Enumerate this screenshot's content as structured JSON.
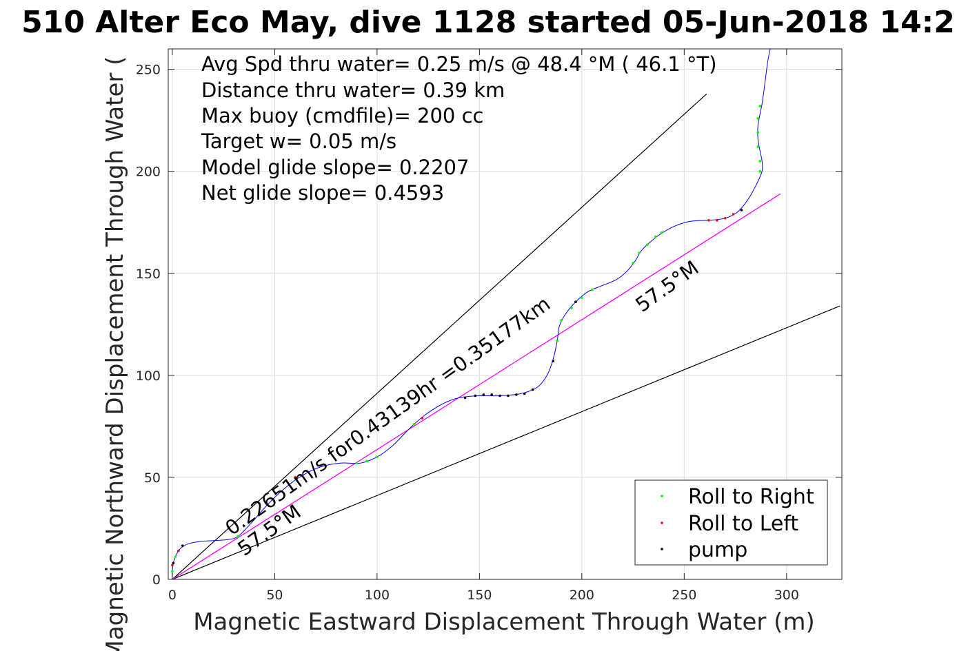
{
  "title": "510 Alter Eco May, dive 1128 started 05-Jun-2018 14:2",
  "xlabel": "Magnetic Eastward Displacement Through Water (m)",
  "ylabel": "Magnetic Northward Displacement Through Water (",
  "info_lines": [
    "Avg Spd thru water=  0.25 m/s @  48.4 °M ( 46.1 °T)",
    "Distance thru water=  0.39 km",
    "Max buoy (cmdfile)= 200 cc",
    "Target w= 0.05 m/s",
    "Model glide slope= 0.2207",
    "Net glide slope= 0.4593"
  ],
  "annotations": {
    "speed_text": "0.22651m/s for0.43139hr =0.35177km",
    "heading_upper": "57.5°M",
    "heading_lower": "57.5°M"
  },
  "legend": [
    {
      "label": "Roll to Right",
      "color": "#00ff00"
    },
    {
      "label": "Roll to Left",
      "color": "#ff0000"
    },
    {
      "label": "pump",
      "color": "#000000"
    }
  ],
  "colors": {
    "track": "#0000ff",
    "net_line": "#ff00ff",
    "envelope": "#000000"
  },
  "chart_data": {
    "type": "line",
    "title": "510 Alter Eco May, dive 1128 started 05-Jun-2018 14:2",
    "xlabel": "Magnetic Eastward Displacement Through Water (m)",
    "ylabel": "Magnetic Northward Displacement Through Water (",
    "xlim": [
      -2,
      327
    ],
    "ylim": [
      0,
      260
    ],
    "xticks": [
      0,
      50,
      100,
      150,
      200,
      250,
      300
    ],
    "yticks": [
      0,
      50,
      100,
      150,
      200,
      250
    ],
    "grid": true,
    "legend_position": "bottom-right",
    "track": [
      [
        0,
        0
      ],
      [
        0,
        4
      ],
      [
        0.5,
        8
      ],
      [
        1.5,
        11
      ],
      [
        3,
        14
      ],
      [
        5,
        16
      ],
      [
        8,
        17.5
      ],
      [
        13,
        18.5
      ],
      [
        20,
        19
      ],
      [
        27,
        19.5
      ],
      [
        32,
        21
      ],
      [
        38,
        27
      ],
      [
        45,
        35
      ],
      [
        53,
        43
      ],
      [
        62,
        50
      ],
      [
        72,
        55
      ],
      [
        82,
        57
      ],
      [
        92,
        57
      ],
      [
        100,
        60
      ],
      [
        107,
        65
      ],
      [
        113,
        71
      ],
      [
        118,
        76
      ],
      [
        124,
        81
      ],
      [
        132,
        86
      ],
      [
        140,
        89
      ],
      [
        150,
        90
      ],
      [
        160,
        90
      ],
      [
        170,
        91
      ],
      [
        178,
        94
      ],
      [
        183,
        100
      ],
      [
        186,
        108
      ],
      [
        188,
        117
      ],
      [
        189,
        124
      ],
      [
        192,
        130
      ],
      [
        197,
        136
      ],
      [
        203,
        141
      ],
      [
        210,
        144
      ],
      [
        217,
        147
      ],
      [
        222,
        151
      ],
      [
        226,
        156
      ],
      [
        229,
        161
      ],
      [
        233,
        165
      ],
      [
        238,
        169
      ],
      [
        245,
        173
      ],
      [
        253,
        175.5
      ],
      [
        262,
        176
      ],
      [
        270,
        177
      ],
      [
        276,
        180
      ],
      [
        281,
        186
      ],
      [
        285,
        193
      ],
      [
        288,
        200
      ],
      [
        288,
        205
      ],
      [
        287,
        210
      ],
      [
        286,
        216
      ],
      [
        286,
        222
      ],
      [
        287,
        228
      ],
      [
        288,
        233
      ],
      [
        289,
        240
      ],
      [
        290,
        248
      ],
      [
        291,
        255
      ],
      [
        292,
        260
      ]
    ],
    "markers": {
      "roll_right": [
        [
          0,
          4
        ],
        [
          1.5,
          11
        ],
        [
          32,
          21
        ],
        [
          90,
          57
        ],
        [
          95,
          58
        ],
        [
          100,
          60
        ],
        [
          118,
          76
        ],
        [
          188,
          117
        ],
        [
          190,
          127
        ],
        [
          195,
          133
        ],
        [
          200,
          138
        ],
        [
          205,
          142
        ],
        [
          225,
          155
        ],
        [
          228,
          160
        ],
        [
          232,
          164
        ],
        [
          236,
          168
        ],
        [
          239,
          170
        ],
        [
          287,
          200
        ],
        [
          287,
          205
        ],
        [
          286,
          212
        ],
        [
          286,
          219
        ],
        [
          286,
          226
        ],
        [
          287,
          232
        ]
      ],
      "roll_left": [
        [
          0,
          7
        ],
        [
          3,
          14
        ],
        [
          60,
          50
        ],
        [
          122,
          79
        ],
        [
          262,
          176
        ],
        [
          266,
          176
        ],
        [
          270,
          177
        ],
        [
          274,
          179
        ]
      ],
      "pump": [
        [
          0.5,
          8
        ],
        [
          5,
          16.5
        ],
        [
          143,
          89
        ],
        [
          148,
          90
        ],
        [
          152,
          90.5
        ],
        [
          156,
          90.5
        ],
        [
          160,
          90
        ],
        [
          164,
          90
        ],
        [
          168,
          90.5
        ],
        [
          172,
          91
        ],
        [
          176,
          93
        ],
        [
          186,
          107
        ],
        [
          197,
          136
        ],
        [
          278,
          181
        ]
      ]
    },
    "net_line": {
      "name": "",
      "x": [
        0,
        297
      ],
      "y": [
        0,
        189
      ]
    },
    "envelope_upper": {
      "x": [
        0,
        261
      ],
      "y": [
        0,
        238
      ]
    },
    "envelope_lower": {
      "x": [
        0,
        326
      ],
      "y": [
        0,
        134
      ]
    }
  }
}
